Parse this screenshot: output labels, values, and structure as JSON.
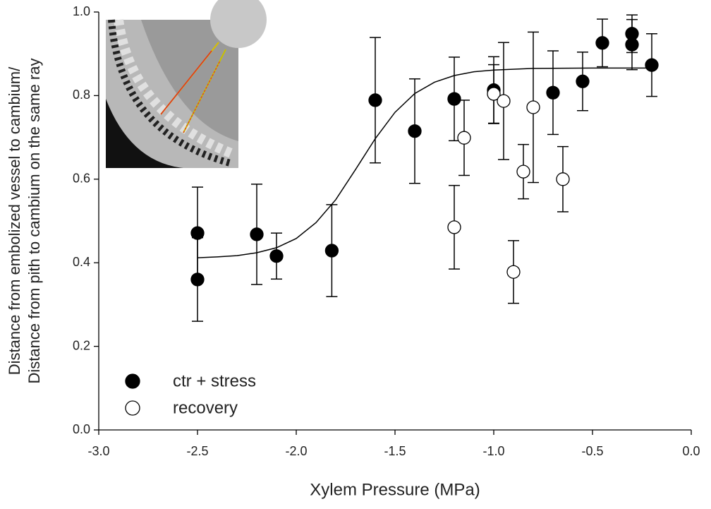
{
  "chart_data": {
    "type": "scatter",
    "x_label": "Xylem Pressure (MPa)",
    "y_label": [
      "Distance from embolized vessel to cambium/",
      "Distance from pith to cambium on the same ray"
    ],
    "xlim": [
      -3,
      0
    ],
    "ylim": [
      0,
      1
    ],
    "xticks": [
      {
        "value": -3,
        "label": "-3.0"
      },
      {
        "value": -2.5,
        "label": "-2.5"
      },
      {
        "value": -2,
        "label": "-2.0"
      },
      {
        "value": -1.5,
        "label": "-1.5"
      },
      {
        "value": -1,
        "label": "-1.0"
      },
      {
        "value": -0.5,
        "label": "-0.5"
      },
      {
        "value": 0,
        "label": "0.0"
      }
    ],
    "yticks": [
      {
        "value": 0,
        "label": "0.0"
      },
      0.2,
      0.4,
      0.6,
      0.8,
      {
        "value": 1,
        "label": "1.0"
      }
    ],
    "series": [
      {
        "name": "ctr + stress",
        "color": "#000000",
        "marker_fill": "#000000",
        "x": [
          -2.5,
          -2.5,
          -2.2,
          -2.1,
          -1.82,
          -1.6,
          -1.4,
          -1.2,
          -1.0,
          -0.7,
          -0.55,
          -0.45,
          -0.3,
          -0.3,
          -0.2
        ],
        "values": [
          0.471,
          0.36,
          0.468,
          0.416,
          0.429,
          0.789,
          0.715,
          0.792,
          0.813,
          0.807,
          0.834,
          0.926,
          0.948,
          0.922,
          0.873
        ],
        "errors": [
          0.11,
          0.1,
          0.12,
          0.055,
          0.11,
          0.15,
          0.125,
          0.1,
          0.08,
          0.1,
          0.07,
          0.057,
          0.045,
          0.06,
          0.075
        ]
      },
      {
        "name": "recovery",
        "color": "#000000",
        "marker_fill": "#ffffff",
        "x": [
          -1.2,
          -1.15,
          -1.0,
          -0.95,
          -0.9,
          -0.85,
          -0.8,
          -0.65
        ],
        "values": [
          0.485,
          0.699,
          0.804,
          0.787,
          0.378,
          0.618,
          0.772,
          0.6
        ],
        "errors": [
          0.1,
          0.09,
          0.07,
          0.14,
          0.075,
          0.065,
          0.18,
          0.078
        ]
      }
    ],
    "fit_line": {
      "color": "#000000",
      "x": [
        -2.5,
        -2.4,
        -2.3,
        -2.2,
        -2.1,
        -2.0,
        -1.9,
        -1.8,
        -1.7,
        -1.6,
        -1.5,
        -1.4,
        -1.3,
        -1.2,
        -1.1,
        -1.0,
        -0.8,
        -0.5,
        -0.2
      ],
      "values": [
        0.412,
        0.414,
        0.417,
        0.424,
        0.436,
        0.458,
        0.496,
        0.551,
        0.623,
        0.697,
        0.76,
        0.805,
        0.832,
        0.848,
        0.857,
        0.861,
        0.865,
        0.866,
        0.866
      ]
    }
  }
}
